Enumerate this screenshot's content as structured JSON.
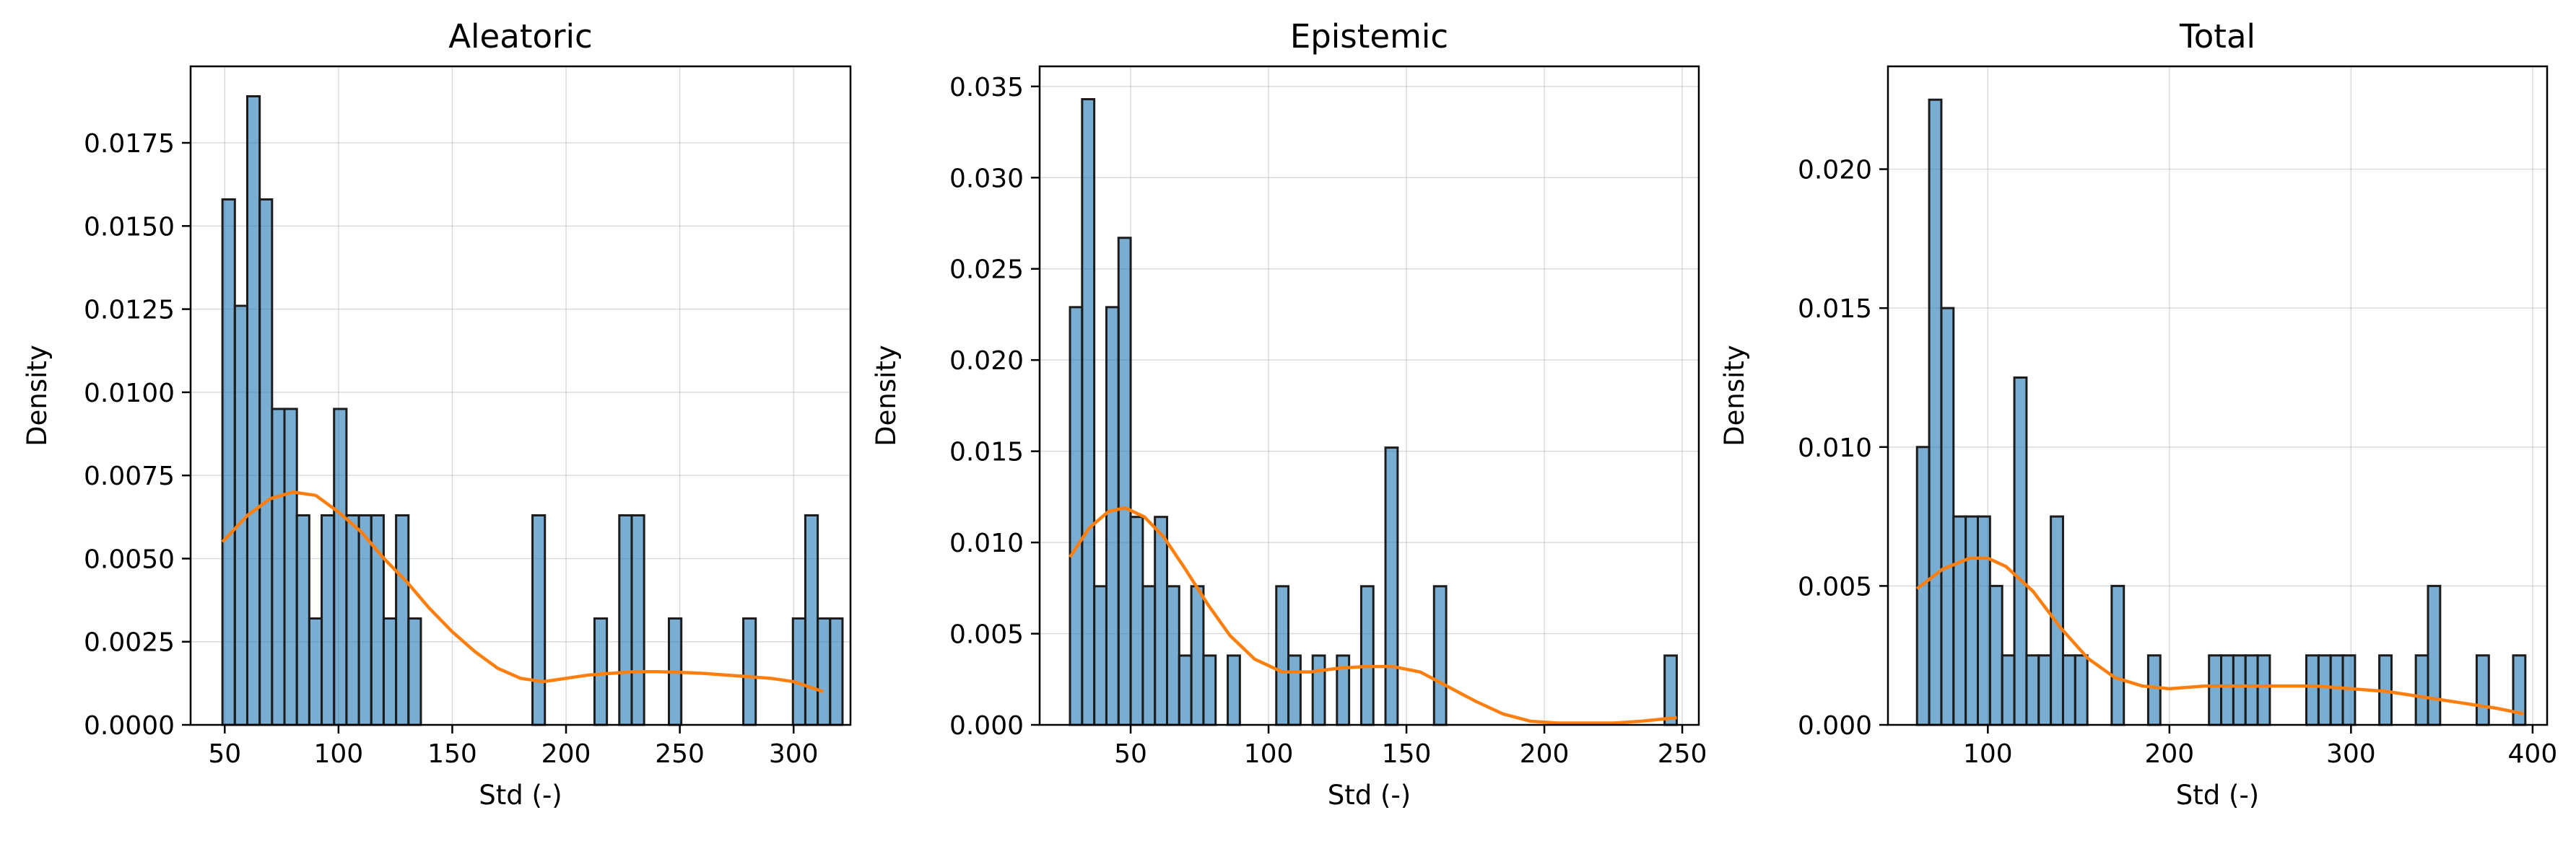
{
  "colors": {
    "bar_fill": "#1f77b4",
    "bar_edge": "#1c1c1c",
    "kde": "#ff7f0e",
    "grid": "#b0b0b0"
  },
  "chart_data": [
    {
      "type": "bar",
      "title": "Aleatoric",
      "xlabel": "Std (-)",
      "ylabel": "Density",
      "xlim": [
        35,
        325
      ],
      "ylim": [
        0,
        0.0198
      ],
      "xticks": [
        50,
        100,
        150,
        200,
        250,
        300
      ],
      "yticks": [
        0,
        0.0025,
        0.005,
        0.0075,
        0.01,
        0.0125,
        0.015,
        0.0175
      ],
      "ytick_labels": [
        "0.0000",
        "0.0025",
        "0.0050",
        "0.0075",
        "0.0100",
        "0.0125",
        "0.0150",
        "0.0175"
      ],
      "grid": true,
      "bins": {
        "start": 49,
        "width": 5.45,
        "counts": [
          0.0158,
          0.0126,
          0.0189,
          0.0158,
          0.0095,
          0.0095,
          0.0063,
          0.0032,
          0.0063,
          0.0095,
          0.0063,
          0.0063,
          0.0063,
          0.0032,
          0.0063,
          0.0032,
          0,
          0,
          0,
          0,
          0,
          0,
          0,
          0,
          0,
          0.0063,
          0,
          0,
          0,
          0,
          0.0032,
          0,
          0.0063,
          0.0063,
          0,
          0,
          0.0032,
          0,
          0,
          0,
          0,
          0,
          0.0032,
          0,
          0,
          0,
          0.0032,
          0.0063,
          0.0032,
          0.0032
        ]
      },
      "kde": {
        "x": [
          49,
          60,
          70,
          80,
          90,
          100,
          110,
          120,
          130,
          140,
          150,
          160,
          170,
          180,
          190,
          200,
          210,
          220,
          230,
          240,
          250,
          260,
          270,
          280,
          290,
          300,
          313
        ],
        "y": [
          0.0055,
          0.0063,
          0.0068,
          0.007,
          0.0069,
          0.0064,
          0.0058,
          0.005,
          0.0043,
          0.0035,
          0.0028,
          0.0022,
          0.0017,
          0.0014,
          0.0013,
          0.0014,
          0.0015,
          0.00155,
          0.0016,
          0.0016,
          0.00158,
          0.00155,
          0.0015,
          0.00145,
          0.0014,
          0.0013,
          0.001
        ]
      }
    },
    {
      "type": "bar",
      "title": "Epistemic",
      "xlabel": "Std (-)",
      "ylabel": "Density",
      "xlim": [
        17,
        256
      ],
      "ylim": [
        0,
        0.0361
      ],
      "xticks": [
        50,
        100,
        150,
        200,
        250
      ],
      "yticks": [
        0,
        0.005,
        0.01,
        0.015,
        0.02,
        0.025,
        0.03,
        0.035
      ],
      "ytick_labels": [
        "0.000",
        "0.005",
        "0.010",
        "0.015",
        "0.020",
        "0.025",
        "0.030",
        "0.035"
      ],
      "grid": true,
      "bins": {
        "start": 28,
        "width": 4.4,
        "counts": [
          0.0229,
          0.0343,
          0.0076,
          0.0229,
          0.0267,
          0.0114,
          0.0076,
          0.0114,
          0.0076,
          0.0038,
          0.0076,
          0.0038,
          0,
          0.0038,
          0,
          0,
          0,
          0.0076,
          0.0038,
          0,
          0.0038,
          0,
          0.0038,
          0,
          0.0076,
          0,
          0.0152,
          0,
          0,
          0,
          0.0076,
          0,
          0,
          0,
          0,
          0,
          0,
          0,
          0,
          0,
          0,
          0,
          0,
          0,
          0,
          0,
          0,
          0,
          0,
          0.0038
        ]
      },
      "kde": {
        "x": [
          28,
          35,
          42,
          48,
          55,
          62,
          70,
          78,
          86,
          95,
          105,
          115,
          125,
          135,
          145,
          155,
          165,
          175,
          185,
          195,
          205,
          215,
          225,
          235,
          248
        ],
        "y": [
          0.0092,
          0.0108,
          0.0117,
          0.0119,
          0.0114,
          0.0103,
          0.0085,
          0.0066,
          0.0049,
          0.0036,
          0.0029,
          0.0029,
          0.0031,
          0.0032,
          0.0032,
          0.0029,
          0.0021,
          0.0013,
          0.0006,
          0.0002,
          0.0001,
          0.0001,
          0.0001,
          0.0002,
          0.0004
        ]
      }
    },
    {
      "type": "bar",
      "title": "Total",
      "xlabel": "Std (-)",
      "ylabel": "Density",
      "xlim": [
        45,
        408
      ],
      "ylim": [
        0,
        0.0237
      ],
      "xticks": [
        100,
        200,
        300,
        400
      ],
      "yticks": [
        0,
        0.005,
        0.01,
        0.015,
        0.02
      ],
      "ytick_labels": [
        "0.000",
        "0.005",
        "0.010",
        "0.015",
        "0.020"
      ],
      "grid": true,
      "bins": {
        "start": 61,
        "width": 6.7,
        "counts": [
          0.01,
          0.0225,
          0.015,
          0.0075,
          0.0075,
          0.0075,
          0.005,
          0.0025,
          0.0125,
          0.0025,
          0.0025,
          0.0075,
          0.0025,
          0.0025,
          0,
          0,
          0.005,
          0,
          0,
          0.0025,
          0,
          0,
          0,
          0,
          0.0025,
          0.0025,
          0.0025,
          0.0025,
          0.0025,
          0,
          0,
          0,
          0.0025,
          0.0025,
          0.0025,
          0.0025,
          0,
          0,
          0.0025,
          0,
          0,
          0.0025,
          0.005,
          0,
          0,
          0,
          0.0025,
          0,
          0,
          0.0025
        ]
      },
      "kde": {
        "x": [
          61,
          75,
          90,
          100,
          110,
          125,
          140,
          155,
          170,
          185,
          200,
          220,
          240,
          260,
          280,
          300,
          320,
          340,
          360,
          380,
          395
        ],
        "y": [
          0.0049,
          0.0056,
          0.006,
          0.006,
          0.0057,
          0.0048,
          0.0035,
          0.0024,
          0.0017,
          0.0014,
          0.0013,
          0.0014,
          0.0014,
          0.0014,
          0.0014,
          0.0013,
          0.0012,
          0.001,
          0.0008,
          0.0006,
          0.0004
        ]
      }
    }
  ]
}
